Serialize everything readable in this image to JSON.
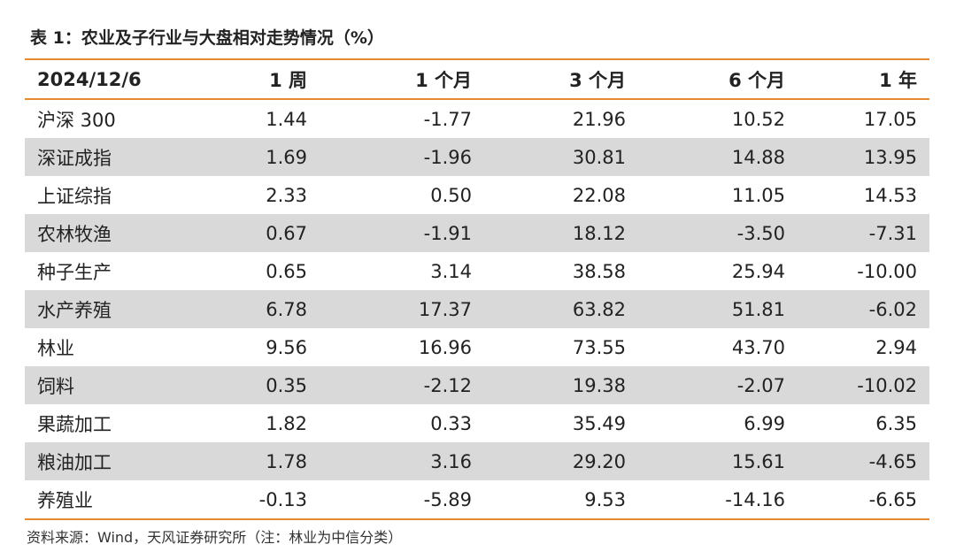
{
  "title": "表 1：农业及子行业与大盘相对走势情况（%）",
  "table": {
    "header": [
      "2024/12/6",
      "1 周",
      "1 个月",
      "3 个月",
      "6 个月",
      "1 年"
    ],
    "rows": [
      [
        "沪深 300",
        "1.44",
        "-1.77",
        "21.96",
        "10.52",
        "17.05"
      ],
      [
        "深证成指",
        "1.69",
        "-1.96",
        "30.81",
        "14.88",
        "13.95"
      ],
      [
        "上证综指",
        "2.33",
        "0.50",
        "22.08",
        "11.05",
        "14.53"
      ],
      [
        "农林牧渔",
        "0.67",
        "-1.91",
        "18.12",
        "-3.50",
        "-7.31"
      ],
      [
        "种子生产",
        "0.65",
        "3.14",
        "38.58",
        "25.94",
        "-10.00"
      ],
      [
        "水产养殖",
        "6.78",
        "17.37",
        "63.82",
        "51.81",
        "-6.02"
      ],
      [
        "林业",
        "9.56",
        "16.96",
        "73.55",
        "43.70",
        "2.94"
      ],
      [
        "饲料",
        "0.35",
        "-2.12",
        "19.38",
        "-2.07",
        "-10.02"
      ],
      [
        "果蔬加工",
        "1.82",
        "0.33",
        "35.49",
        "6.99",
        "6.35"
      ],
      [
        "粮油加工",
        "1.78",
        "3.16",
        "29.20",
        "15.61",
        "-4.65"
      ],
      [
        "养殖业",
        "-0.13",
        "-5.89",
        "9.53",
        "-14.16",
        "-6.65"
      ]
    ]
  },
  "source": "资料来源：Wind，天风证券研究所（注：林业为中信分类）"
}
